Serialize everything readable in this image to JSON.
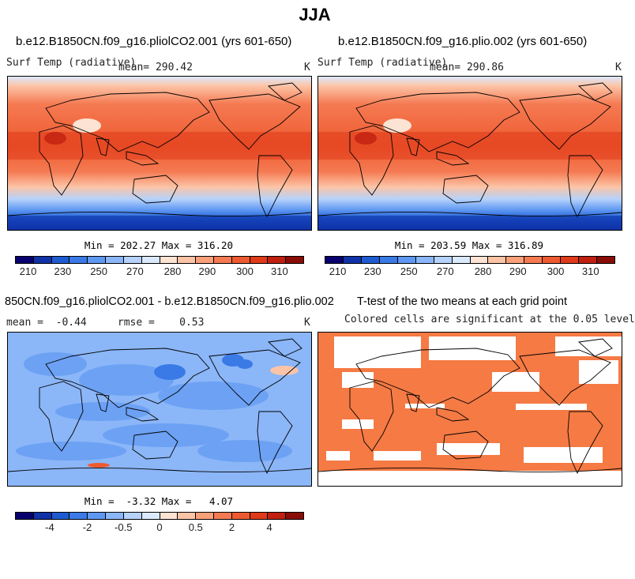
{
  "page_title": "JJA",
  "panels": [
    {
      "case_title": "b.e12.B1850CN.f09_g16.pliolCO2.001 (yrs 601-650)",
      "var_label": "Surf Temp (radiative)",
      "stat_text": "mean= 290.42",
      "units": "K",
      "minmax": "Min = 202.27 Max = 316.20"
    },
    {
      "case_title": "b.e12.B1850CN.f09_g16.plio.002 (yrs 601-650)",
      "var_label": "Surf Temp (radiative)",
      "stat_text": "mean= 290.86",
      "units": "K",
      "minmax": "Min = 203.59 Max = 316.89"
    },
    {
      "case_title": "850CN.f09_g16.pliolCO2.001 - b.e12.B1850CN.f09_g16.plio.002",
      "stat_text": "mean =  -0.44     rmse =    0.53",
      "units": "K",
      "minmax": "Min =  -3.32 Max =   4.07"
    },
    {
      "case_title": "T-test of the two means at each grid point",
      "subtitle": "Colored cells are significant at the 0.05 level"
    }
  ],
  "colorbar_abs": {
    "colors": [
      "#08006e",
      "#0f32a8",
      "#1e5bd2",
      "#3a7ae6",
      "#5f98f2",
      "#8bb6f8",
      "#b5d2fb",
      "#dbe9fd",
      "#fde3d3",
      "#fcc4a6",
      "#f9a07a",
      "#f57a52",
      "#ee5a30",
      "#e03a1a",
      "#c11f10",
      "#8a0c06"
    ],
    "ticks": [
      "210",
      "230",
      "250",
      "270",
      "280",
      "290",
      "300",
      "310"
    ]
  },
  "colorbar_diff": {
    "colors": [
      "#08006e",
      "#0f32a8",
      "#1e5bd2",
      "#3a7ae6",
      "#5f98f2",
      "#8bb6f8",
      "#b5d2fb",
      "#dbe9fd",
      "#fde3d3",
      "#fcc4a6",
      "#f9a07a",
      "#f57a52",
      "#ee5a30",
      "#e03a1a",
      "#c11f10",
      "#8a0c06"
    ],
    "ticks": [
      "-4",
      "-2",
      "-0.5",
      "0",
      "0.5",
      "2",
      "4"
    ]
  },
  "chart_data": [
    {
      "type": "heatmap",
      "title": "b.e12.B1850CN.f09_g16.pliolCO2.001 (yrs 601-650)",
      "variable": "Surf Temp (radiative)",
      "units": "K",
      "mean": 290.42,
      "min": 202.27,
      "max": 316.2,
      "color_levels": [
        210,
        220,
        230,
        240,
        250,
        260,
        270,
        275,
        280,
        285,
        290,
        295,
        300,
        305,
        310
      ]
    },
    {
      "type": "heatmap",
      "title": "b.e12.B1850CN.f09_g16.plio.002 (yrs 601-650)",
      "variable": "Surf Temp (radiative)",
      "units": "K",
      "mean": 290.86,
      "min": 203.59,
      "max": 316.89,
      "color_levels": [
        210,
        220,
        230,
        240,
        250,
        260,
        270,
        275,
        280,
        285,
        290,
        295,
        300,
        305,
        310
      ]
    },
    {
      "type": "heatmap",
      "title": "850CN.f09_g16.pliolCO2.001 - b.e12.B1850CN.f09_g16.plio.002",
      "units": "K",
      "mean": -0.44,
      "rmse": 0.53,
      "min": -3.32,
      "max": 4.07,
      "color_levels": [
        -5,
        -4,
        -3,
        -2,
        -1,
        -0.5,
        -0.25,
        0,
        0.25,
        0.5,
        1,
        2,
        3,
        4,
        5
      ]
    },
    {
      "type": "heatmap",
      "title": "T-test of the two means at each grid point",
      "note": "Colored cells are significant at the 0.05 level"
    }
  ]
}
